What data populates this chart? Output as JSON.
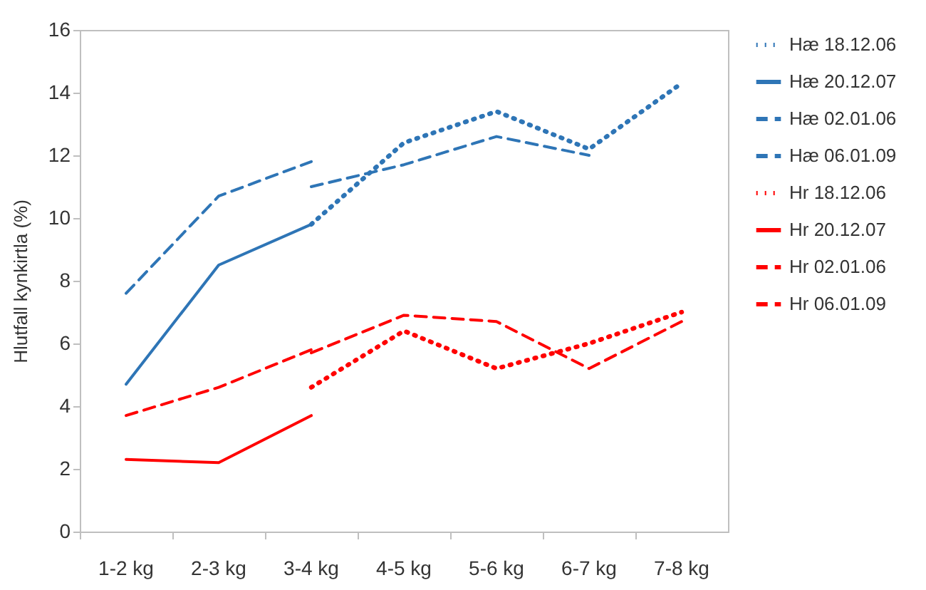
{
  "chart_data": {
    "type": "line",
    "ylabel": "Hlutfall kynkirtla (%)",
    "categories": [
      "1-2 kg",
      "2-3 kg",
      "3-4 kg",
      "4-5 kg",
      "5-6 kg",
      "6-7 kg",
      "7-8 kg"
    ],
    "ylim": [
      0,
      16
    ],
    "yticks": [
      0,
      2,
      4,
      6,
      8,
      10,
      12,
      14,
      16
    ],
    "legend": "right",
    "marker": "none",
    "series": [
      {
        "name": "Hæ 18.12.06",
        "color": "#2e75b6",
        "line_style": "dotted",
        "values": [
          null,
          null,
          9.8,
          12.4,
          13.4,
          12.2,
          14.3
        ]
      },
      {
        "name": "Hæ 20.12.07",
        "color": "#2e75b6",
        "line_style": "solid",
        "values": [
          4.7,
          8.5,
          9.8,
          null,
          null,
          null,
          null
        ]
      },
      {
        "name": "Hæ 02.01.06",
        "color": "#2e75b6",
        "line_style": "dashed",
        "values": [
          7.6,
          10.7,
          11.8,
          null,
          null,
          null,
          null
        ]
      },
      {
        "name": "Hæ 06.01.09",
        "color": "#2e75b6",
        "line_style": "dashed",
        "values": [
          null,
          null,
          11.0,
          11.7,
          12.6,
          12.0,
          null
        ]
      },
      {
        "name": "Hr 18.12.06",
        "color": "#ff0000",
        "line_style": "dotted",
        "values": [
          null,
          null,
          4.6,
          6.4,
          5.2,
          6.0,
          7.0
        ]
      },
      {
        "name": "Hr 20.12.07",
        "color": "#ff0000",
        "line_style": "solid",
        "values": [
          2.3,
          2.2,
          3.7,
          null,
          null,
          null,
          null
        ]
      },
      {
        "name": "Hr 02.01.06",
        "color": "#ff0000",
        "line_style": "dashed",
        "values": [
          3.7,
          4.6,
          5.8,
          null,
          null,
          null,
          null
        ]
      },
      {
        "name": "Hr 06.01.09",
        "color": "#ff0000",
        "line_style": "dashed",
        "values": [
          null,
          null,
          5.7,
          6.9,
          6.7,
          5.2,
          6.7
        ]
      }
    ]
  }
}
